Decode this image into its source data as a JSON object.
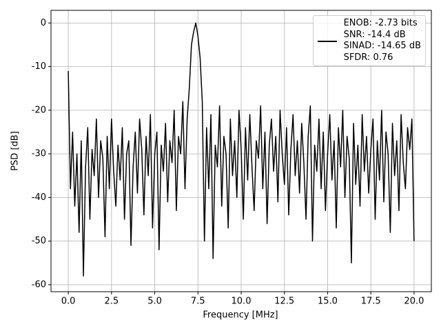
{
  "chart_data": {
    "type": "line",
    "xlabel": "Frequency [MHz]",
    "ylabel": "PSD [dB]",
    "xlim": [
      -1.0,
      21.0
    ],
    "ylim": [
      -61.6,
      2.9
    ],
    "xticks": [
      {
        "value": 0,
        "label": "0.0"
      },
      2.5,
      {
        "value": 5,
        "label": "5.0"
      },
      7.5,
      {
        "value": 10,
        "label": "10.0"
      },
      12.5,
      {
        "value": 15,
        "label": "15.0"
      },
      17.5,
      {
        "value": 20,
        "label": "20.0"
      }
    ],
    "yticks": [
      -60,
      -50,
      -40,
      -30,
      -20,
      -10,
      0
    ],
    "grid": true,
    "legend": "upper right",
    "x": [
      0,
      0.125,
      0.25,
      0.375,
      0.5,
      0.625,
      0.75,
      0.875,
      1,
      1.125,
      1.25,
      1.375,
      1.5,
      1.625,
      1.75,
      1.875,
      2,
      2.125,
      2.25,
      2.375,
      2.5,
      2.625,
      2.75,
      2.875,
      3,
      3.125,
      3.25,
      3.375,
      3.5,
      3.625,
      3.75,
      3.875,
      4,
      4.125,
      4.25,
      4.375,
      4.5,
      4.625,
      4.75,
      4.875,
      5,
      5.125,
      5.25,
      5.375,
      5.5,
      5.625,
      5.75,
      5.875,
      6,
      6.125,
      6.25,
      6.375,
      6.5,
      6.625,
      6.75,
      6.875,
      7,
      7.125,
      7.25,
      7.375,
      7.5,
      7.625,
      7.75,
      7.875,
      8,
      8.125,
      8.25,
      8.375,
      8.5,
      8.625,
      8.75,
      8.875,
      9,
      9.125,
      9.25,
      9.375,
      9.5,
      9.625,
      9.75,
      9.875,
      10,
      10.125,
      10.25,
      10.375,
      10.5,
      10.625,
      10.75,
      10.875,
      11,
      11.125,
      11.25,
      11.375,
      11.5,
      11.625,
      11.75,
      11.875,
      12,
      12.125,
      12.25,
      12.375,
      12.5,
      12.625,
      12.75,
      12.875,
      13,
      13.125,
      13.25,
      13.375,
      13.5,
      13.625,
      13.75,
      13.875,
      14,
      14.125,
      14.25,
      14.375,
      14.5,
      14.625,
      14.75,
      14.875,
      15,
      15.125,
      15.25,
      15.375,
      15.5,
      15.625,
      15.75,
      15.875,
      16,
      16.125,
      16.25,
      16.375,
      16.5,
      16.625,
      16.75,
      16.875,
      17,
      17.125,
      17.25,
      17.375,
      17.5,
      17.625,
      17.75,
      17.875,
      18,
      18.125,
      18.25,
      18.375,
      18.5,
      18.625,
      18.75,
      18.875,
      19,
      19.125,
      19.25,
      19.375,
      19.5,
      19.625,
      19.75,
      19.875,
      20
    ],
    "series": [
      {
        "name": "ENOB: -2.73 bits\nSNR: -14.4 dB\nSINAD: -14.65 dB\nSFDR: 0.76",
        "color": "#000000",
        "values": [
          -11,
          -38,
          -25,
          -42,
          -30,
          -48,
          -27,
          -58,
          -33,
          -24,
          -45,
          -29,
          -35,
          -22,
          -40,
          -27,
          -31,
          -49,
          -26,
          -38,
          -22,
          -34,
          -42,
          -28,
          -36,
          -24,
          -45,
          -30,
          -27,
          -51,
          -33,
          -25,
          -39,
          -22,
          -29,
          -44,
          -26,
          -35,
          -21,
          -47,
          -30,
          -25,
          -52,
          -28,
          -34,
          -23,
          -41,
          -27,
          -32,
          -20,
          -43,
          -26,
          -30,
          -18,
          -38,
          -22,
          -15,
          -5,
          -2,
          0,
          -3,
          -8,
          -18,
          -50,
          -24,
          -38,
          -21,
          -54,
          -28,
          -33,
          -19,
          -42,
          -26,
          -30,
          -47,
          -22,
          -35,
          -27,
          -40,
          -20,
          -29,
          -45,
          -24,
          -36,
          -21,
          -33,
          -43,
          -27,
          -31,
          -19,
          -38,
          -25,
          -46,
          -28,
          -22,
          -34,
          -26,
          -41,
          -20,
          -30,
          -37,
          -24,
          -44,
          -29,
          -21,
          -35,
          -27,
          -39,
          -23,
          -32,
          -45,
          -26,
          -19,
          -50,
          -28,
          -34,
          -22,
          -38,
          -25,
          -43,
          -30,
          -21,
          -36,
          -27,
          -47,
          -24,
          -33,
          -20,
          -40,
          -26,
          -31,
          -55,
          -23,
          -37,
          -28,
          -42,
          -21,
          -34,
          -26,
          -39,
          -29,
          -22,
          -45,
          -27,
          -36,
          -20,
          -41,
          -25,
          -30,
          -48,
          -23,
          -35,
          -27,
          -43,
          -21,
          -32,
          -38,
          -24,
          -29,
          -22,
          -50
        ]
      }
    ]
  }
}
